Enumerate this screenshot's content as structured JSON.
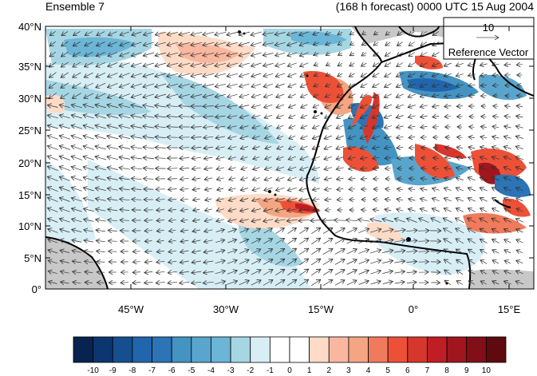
{
  "header": {
    "ensemble_label": "Ensemble 7",
    "forecast_label": "(168 h forecast) 0000 UTC 15 Aug 2004"
  },
  "map": {
    "lat_labels": [
      "0°",
      "5°N",
      "10°N",
      "15°N",
      "20°N",
      "25°N",
      "30°N",
      "35°N",
      "40°N"
    ],
    "lon_labels": [
      "45°W",
      "30°W",
      "15°W",
      "0°",
      "15°E"
    ],
    "lat_range": [
      0,
      40
    ],
    "lon_range": [
      -57,
      20
    ],
    "colors": {
      "land_fill": "#c8c8c8",
      "coast": "#000000",
      "vector": "#333333"
    }
  },
  "reference_vector": {
    "magnitude_label": "10",
    "caption": "Reference Vector"
  },
  "colorbar": {
    "labels": [
      "-10",
      "-9",
      "-8",
      "-7",
      "-6",
      "-5",
      "-4",
      "-3",
      "-2",
      "-1",
      "0",
      "1",
      "2",
      "3",
      "4",
      "5",
      "6",
      "7",
      "8",
      "9",
      "10"
    ],
    "colors": [
      "#08234f",
      "#0c3670",
      "#154f8f",
      "#2166ac",
      "#2c74b6",
      "#4393c3",
      "#5aa5cd",
      "#6bb5d6",
      "#a6d6e4",
      "#d7eef5",
      "#ffffff",
      "#ffffff",
      "#fddbc7",
      "#f9b7a0",
      "#f4a582",
      "#f07a5c",
      "#ec5138",
      "#d6372c",
      "#c01d24",
      "#a1151d",
      "#820f17",
      "#5e0a0f"
    ]
  }
}
